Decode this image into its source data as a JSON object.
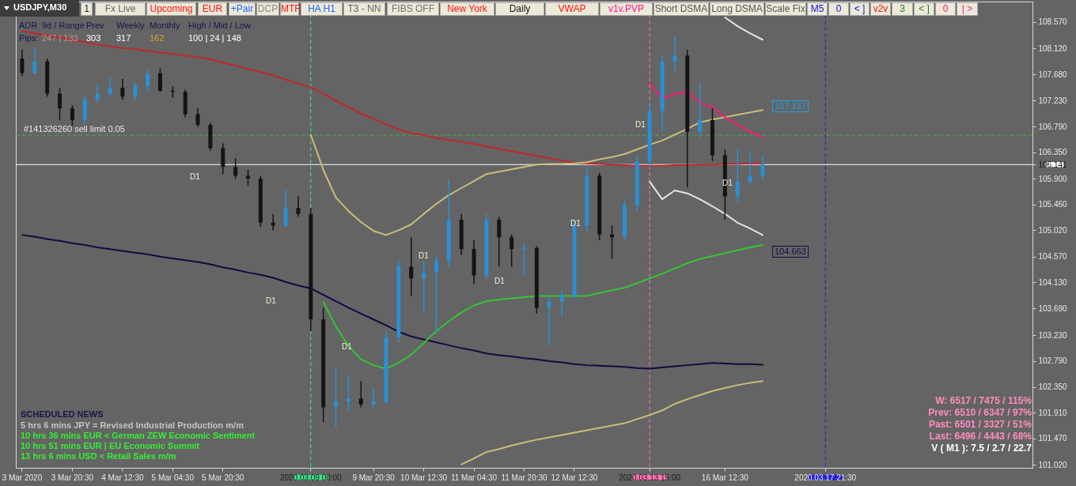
{
  "chart_data": {
    "type": "candlestick",
    "title": "USDJPY,M30",
    "categories": [
      "3 Mar 2020",
      null,
      null,
      null,
      "3 Mar 20:30",
      null,
      null,
      null,
      "4 Mar 12:30",
      null,
      null,
      null,
      "5 Mar 04:30",
      null,
      null,
      null,
      "5 Mar 20:30",
      null,
      null,
      null,
      null,
      null,
      null,
      "2020.03.09 00:00",
      null,
      null,
      null,
      null,
      "9 Mar 20:30",
      null,
      null,
      null,
      "10 Mar 12:30",
      null,
      null,
      null,
      "11 Mar 04:30",
      null,
      null,
      null,
      "11 Mar 20:30",
      null,
      null,
      null,
      "12 Mar 12:30",
      null,
      null,
      null,
      null,
      null,
      "2020.03.13 15:00",
      null,
      null,
      null,
      null,
      null,
      "16 Mar 12:30",
      null,
      null,
      null,
      null,
      null,
      null,
      null,
      "2020.03.17 21:30",
      null,
      null,
      null,
      null,
      null,
      null,
      null,
      null,
      null,
      null,
      null,
      null,
      null,
      null,
      null,
      null
    ],
    "ohlc": [
      [
        107.95,
        108.1,
        107.65,
        107.7
      ],
      [
        107.7,
        108.14,
        107.68,
        107.9
      ],
      [
        107.9,
        107.95,
        107.3,
        107.35
      ],
      [
        107.35,
        107.45,
        106.9,
        107.1
      ],
      [
        107.1,
        107.15,
        106.8,
        106.9
      ],
      [
        106.9,
        107.3,
        106.83,
        107.25
      ],
      [
        107.25,
        107.5,
        107.2,
        107.35
      ],
      [
        107.35,
        107.62,
        107.3,
        107.45
      ],
      [
        107.45,
        107.6,
        107.25,
        107.3
      ],
      [
        107.3,
        107.55,
        107.22,
        107.48
      ],
      [
        107.48,
        107.75,
        107.4,
        107.7
      ],
      [
        107.7,
        107.78,
        107.38,
        107.4
      ],
      [
        107.4,
        107.48,
        107.28,
        107.38
      ],
      [
        107.38,
        107.42,
        106.95,
        107.0
      ],
      [
        107.0,
        107.1,
        106.78,
        106.82
      ],
      [
        106.82,
        106.85,
        106.38,
        106.42
      ],
      [
        106.42,
        106.5,
        105.98,
        106.1
      ],
      [
        106.1,
        106.25,
        105.9,
        105.95
      ],
      [
        105.95,
        106.05,
        105.78,
        105.9
      ],
      [
        105.9,
        105.95,
        105.08,
        105.15
      ],
      [
        105.15,
        105.3,
        105.02,
        105.1
      ],
      [
        105.1,
        105.71,
        105.08,
        105.4
      ],
      [
        105.4,
        105.6,
        105.25,
        105.3
      ],
      [
        105.3,
        105.4,
        103.3,
        103.5
      ],
      [
        103.5,
        103.7,
        101.75,
        102.0
      ],
      [
        102.0,
        102.7,
        101.65,
        102.1
      ],
      [
        102.1,
        102.55,
        101.95,
        102.15
      ],
      [
        102.15,
        102.45,
        102.0,
        102.05
      ],
      [
        102.05,
        102.35,
        101.98,
        102.1
      ],
      [
        102.1,
        103.3,
        102.05,
        103.2
      ],
      [
        103.2,
        104.5,
        103.1,
        104.4
      ],
      [
        104.4,
        104.9,
        103.9,
        104.2
      ],
      [
        104.2,
        104.5,
        103.6,
        104.3
      ],
      [
        104.3,
        104.6,
        103.25,
        104.5
      ],
      [
        104.5,
        105.9,
        104.4,
        105.2
      ],
      [
        105.2,
        105.3,
        104.6,
        104.7
      ],
      [
        104.7,
        104.85,
        104.1,
        104.25
      ],
      [
        104.25,
        105.3,
        104.2,
        105.2
      ],
      [
        105.2,
        105.25,
        104.4,
        104.9
      ],
      [
        104.9,
        104.95,
        104.4,
        104.7
      ],
      [
        104.7,
        104.8,
        104.25,
        104.72
      ],
      [
        104.72,
        104.75,
        103.6,
        103.7
      ],
      [
        103.7,
        103.9,
        103.05,
        103.8
      ],
      [
        103.8,
        104.0,
        103.55,
        103.9
      ],
      [
        103.9,
        105.2,
        103.85,
        105.1
      ],
      [
        105.1,
        106.1,
        105.0,
        105.95
      ],
      [
        105.95,
        106.0,
        104.85,
        104.95
      ],
      [
        104.95,
        105.1,
        104.53,
        104.9
      ],
      [
        104.9,
        105.55,
        104.85,
        105.45
      ],
      [
        105.45,
        106.3,
        105.35,
        106.2
      ],
      [
        106.2,
        107.2,
        106.1,
        107.05
      ],
      [
        107.05,
        108.0,
        106.7,
        107.9
      ],
      [
        107.9,
        108.35,
        107.7,
        108.0
      ],
      [
        108.0,
        108.1,
        105.75,
        106.7
      ],
      [
        106.7,
        107.55,
        106.6,
        106.9
      ],
      [
        106.9,
        107.1,
        106.2,
        106.3
      ],
      [
        106.3,
        106.4,
        105.2,
        105.6
      ],
      [
        105.6,
        106.4,
        105.5,
        105.85
      ],
      [
        105.85,
        106.35,
        105.8,
        105.95
      ],
      [
        105.95,
        106.3,
        105.9,
        106.14
      ],
      null,
      null,
      null,
      null,
      null,
      null,
      null,
      null,
      null,
      null,
      null,
      null,
      null,
      null,
      null,
      null,
      null,
      null,
      null,
      null,
      null
    ],
    "colors": [
      "#141414",
      "#2b8fd6",
      "#141414",
      "#141414",
      "#141414",
      "#2b8fd6",
      "#2b8fd6",
      "#2b8fd6",
      "#141414",
      "#2b8fd6",
      "#2b8fd6",
      "#141414",
      "#141414",
      "#141414",
      "#141414",
      "#141414",
      "#141414",
      "#141414",
      "#141414",
      "#141414",
      "#141414",
      "#2b8fd6",
      "#141414",
      "#141414",
      "#141414",
      "#2b8fd6",
      "#2b8fd6",
      "#141414",
      "#2b8fd6",
      "#2b8fd6",
      "#2b8fd6",
      "#141414",
      "#2b8fd6",
      "#2b8fd6",
      "#2b8fd6",
      "#141414",
      "#141414",
      "#2b8fd6",
      "#141414",
      "#141414",
      "#2b8fd6",
      "#141414",
      "#2b8fd6",
      "#2b8fd6",
      "#2b8fd6",
      "#2b8fd6",
      "#141414",
      "#141414",
      "#2b8fd6",
      "#2b8fd6",
      "#2b8fd6",
      "#2b8fd6",
      "#2b8fd6",
      "#141414",
      "#2b8fd6",
      "#141414",
      "#141414",
      "#2b8fd6",
      "#2b8fd6",
      "#2b8fd6",
      null,
      null,
      null,
      null,
      null,
      null,
      null,
      null,
      null,
      null,
      null,
      null,
      null,
      null,
      null,
      null,
      null,
      null,
      null,
      null,
      null
    ],
    "series": [
      {
        "type": "line",
        "color": "#c0282d",
        "values": [
          108.42,
          108.38,
          108.34,
          108.31,
          108.27,
          108.23,
          108.19,
          108.16,
          108.13,
          108.11,
          108.08,
          108.05,
          108.03,
          108.0,
          107.97,
          107.94,
          107.88,
          107.83,
          107.77,
          107.72,
          107.66,
          107.59,
          107.52,
          107.46,
          107.35,
          107.23,
          107.12,
          107.01,
          106.92,
          106.83,
          106.74,
          106.68,
          106.64,
          106.6,
          106.56,
          106.53,
          106.49,
          106.45,
          106.41,
          106.37,
          106.33,
          106.29,
          106.25,
          106.21,
          106.17,
          106.16,
          106.15,
          106.14,
          106.13,
          106.12,
          106.12,
          106.12,
          106.13,
          106.13,
          106.14,
          106.14,
          106.15,
          106.15,
          106.16,
          106.16,
          null,
          null,
          null,
          null,
          null,
          null,
          null,
          null,
          null,
          null,
          null,
          null,
          null,
          null,
          null,
          null,
          null,
          null,
          null,
          null,
          null
        ]
      },
      {
        "type": "line",
        "color": "#0c0c40",
        "values": [
          104.94,
          104.91,
          104.87,
          104.84,
          104.8,
          104.77,
          104.73,
          104.7,
          104.67,
          104.64,
          104.61,
          104.57,
          104.54,
          104.51,
          104.48,
          104.44,
          104.39,
          104.35,
          104.3,
          104.26,
          104.21,
          104.14,
          104.08,
          104.03,
          103.92,
          103.81,
          103.7,
          103.6,
          103.5,
          103.4,
          103.29,
          103.21,
          103.16,
          103.11,
          103.06,
          103.01,
          102.97,
          102.92,
          102.89,
          102.87,
          102.84,
          102.82,
          102.79,
          102.77,
          102.74,
          102.72,
          102.71,
          102.7,
          102.69,
          102.67,
          102.66,
          102.68,
          102.7,
          102.72,
          102.74,
          102.76,
          102.75,
          102.74,
          102.74,
          102.73,
          null,
          null,
          null,
          null,
          null,
          null,
          null,
          null,
          null,
          null,
          null,
          null,
          null,
          null,
          null,
          null,
          null,
          null,
          null,
          null,
          null
        ]
      },
      {
        "type": "line",
        "color": "#cbbd7b",
        "values": [
          null,
          null,
          null,
          null,
          null,
          null,
          null,
          null,
          null,
          null,
          null,
          null,
          null,
          null,
          null,
          null,
          null,
          null,
          null,
          null,
          null,
          null,
          null,
          106.65,
          106.05,
          105.58,
          105.35,
          105.16,
          105.01,
          104.94,
          105.02,
          105.12,
          105.3,
          105.47,
          105.62,
          105.74,
          105.86,
          105.98,
          106.02,
          106.06,
          106.1,
          106.14,
          106.15,
          106.15,
          106.16,
          106.18,
          106.23,
          106.27,
          106.32,
          106.4,
          106.48,
          106.55,
          106.65,
          106.75,
          106.86,
          106.91,
          106.95,
          106.99,
          107.03,
          107.07,
          null,
          null,
          null,
          null,
          null,
          null,
          null,
          null,
          null,
          null,
          null,
          null,
          null,
          null,
          null,
          null,
          null,
          null,
          null,
          null,
          null
        ]
      },
      {
        "type": "line",
        "color": "#cbbd7b",
        "values": [
          null,
          null,
          null,
          null,
          null,
          null,
          null,
          null,
          null,
          null,
          null,
          null,
          null,
          null,
          null,
          null,
          null,
          null,
          null,
          null,
          null,
          null,
          null,
          null,
          null,
          null,
          null,
          null,
          null,
          null,
          null,
          null,
          null,
          null,
          null,
          101.03,
          101.13,
          101.24,
          101.29,
          101.35,
          101.4,
          101.45,
          101.49,
          101.53,
          101.57,
          101.61,
          101.65,
          101.69,
          101.73,
          101.8,
          101.87,
          101.95,
          102.06,
          102.14,
          102.21,
          102.28,
          102.33,
          102.38,
          102.42,
          102.45,
          null,
          null,
          null,
          null,
          null,
          null,
          null,
          null,
          null,
          null,
          null,
          null,
          null,
          null,
          null,
          null,
          null,
          null,
          null,
          null,
          null
        ]
      },
      {
        "type": "line",
        "color": "#35c435",
        "values": [
          null,
          null,
          null,
          null,
          null,
          null,
          null,
          null,
          null,
          null,
          null,
          null,
          null,
          null,
          null,
          null,
          null,
          null,
          null,
          null,
          null,
          null,
          null,
          null,
          103.8,
          103.38,
          103.05,
          102.82,
          102.72,
          102.66,
          102.76,
          102.9,
          103.1,
          103.3,
          103.47,
          103.62,
          103.74,
          103.81,
          103.84,
          103.86,
          103.88,
          103.9,
          103.9,
          103.9,
          103.9,
          103.9,
          103.95,
          104.0,
          104.04,
          104.12,
          104.2,
          104.28,
          104.37,
          104.46,
          104.53,
          104.58,
          104.63,
          104.68,
          104.73,
          104.77,
          null,
          null,
          null,
          null,
          null,
          null,
          null,
          null,
          null,
          null,
          null,
          null,
          null,
          null,
          null,
          null,
          null,
          null,
          null,
          null,
          null
        ]
      },
      {
        "type": "line",
        "color": "#ff1a75",
        "values": [
          null,
          null,
          null,
          null,
          null,
          null,
          null,
          null,
          null,
          null,
          null,
          null,
          null,
          null,
          null,
          null,
          null,
          null,
          null,
          null,
          null,
          null,
          null,
          null,
          null,
          null,
          null,
          null,
          null,
          null,
          null,
          null,
          null,
          null,
          null,
          null,
          null,
          null,
          null,
          null,
          null,
          null,
          null,
          null,
          null,
          null,
          null,
          null,
          null,
          null,
          107.53,
          107.25,
          107.35,
          107.38,
          107.2,
          107.12,
          106.95,
          106.82,
          106.7,
          106.61,
          null,
          null,
          null,
          null,
          null,
          null,
          null,
          null,
          null,
          null,
          null,
          null,
          null,
          null,
          null,
          null,
          null,
          null,
          null,
          null,
          null
        ]
      },
      {
        "type": "line",
        "color": "#e4e4e4",
        "values": [
          null,
          null,
          null,
          null,
          null,
          null,
          null,
          null,
          null,
          null,
          null,
          null,
          null,
          null,
          null,
          null,
          null,
          null,
          null,
          null,
          null,
          null,
          null,
          null,
          null,
          null,
          null,
          null,
          null,
          null,
          null,
          null,
          null,
          null,
          null,
          null,
          null,
          null,
          null,
          null,
          null,
          null,
          null,
          null,
          null,
          null,
          null,
          null,
          null,
          null,
          null,
          null,
          null,
          null,
          null,
          null,
          108.65,
          108.5,
          108.38,
          108.27,
          null,
          null,
          null,
          null,
          null,
          null,
          null,
          null,
          null,
          null,
          null,
          null,
          null,
          null,
          null,
          null,
          null,
          null,
          null,
          null,
          null
        ]
      },
      {
        "type": "line",
        "color": "#e4e4e4",
        "values": [
          null,
          null,
          null,
          null,
          null,
          null,
          null,
          null,
          null,
          null,
          null,
          null,
          null,
          null,
          null,
          null,
          null,
          null,
          null,
          null,
          null,
          null,
          null,
          null,
          null,
          null,
          null,
          null,
          null,
          null,
          null,
          null,
          null,
          null,
          null,
          null,
          null,
          null,
          null,
          null,
          null,
          null,
          null,
          null,
          null,
          null,
          null,
          null,
          null,
          null,
          105.85,
          105.55,
          105.7,
          105.65,
          105.55,
          105.43,
          105.3,
          105.15,
          105.05,
          104.94,
          null,
          null,
          null,
          null,
          null,
          null,
          null,
          null,
          null,
          null,
          null,
          null,
          null,
          null,
          null,
          null,
          null,
          null,
          null,
          null,
          null
        ]
      }
    ],
    "ylim": [
      100.97,
      108.92
    ],
    "yticks": [
      {
        "value": 101.02,
        "label": "101.020"
      },
      {
        "value": 101.47,
        "label": "101.470"
      },
      {
        "value": 101.91,
        "label": "101.910"
      },
      {
        "value": 102.35,
        "label": "102.350"
      },
      {
        "value": 102.79,
        "label": "102.790"
      },
      {
        "value": 103.23,
        "label": "103.230"
      },
      {
        "value": 103.69,
        "label": "103.690"
      },
      {
        "value": 104.13,
        "label": "104.130"
      },
      {
        "value": 104.57,
        "label": "104.570"
      },
      {
        "value": 105.02,
        "label": "105.020"
      },
      {
        "value": 105.46,
        "label": "105.460"
      },
      {
        "value": 105.9,
        "label": "105.900"
      },
      {
        "value": 106.141,
        "label": "106.141"
      },
      {
        "value": 106.35,
        "label": "106.350"
      },
      {
        "value": 106.79,
        "label": "106.790"
      },
      {
        "value": 107.23,
        "label": "107.230"
      },
      {
        "value": 107.68,
        "label": "107.680"
      },
      {
        "value": 108.12,
        "label": "108.120"
      },
      {
        "value": 108.57,
        "label": "108.570"
      }
    ],
    "ref_lines": [
      {
        "axis": "x",
        "value": "2020.03.09 00:00",
        "color": "#3fe08a",
        "line_style": "dashed"
      },
      {
        "axis": "x",
        "value": "2020.03.13 15:00",
        "color": "#ff70b0",
        "line_style": "dashed"
      },
      {
        "axis": "x",
        "value": "2020.03.17 21:30",
        "color": "#2424d8",
        "line_style": "dashed"
      },
      {
        "axis": "y",
        "value": 106.64,
        "color": "#3cb043",
        "line_style": "dashed",
        "label": "#141326260 sell limit 0.05"
      },
      {
        "axis": "y",
        "value": 106.141,
        "color": "#ffffff",
        "line_style": "solid"
      }
    ],
    "annotations": [
      "1",
      "Fx Live",
      "Upcoming",
      "EUR",
      "+Pair",
      "DCP",
      "MTF",
      "HA H1",
      "T3 - NN",
      "FIBS OFF",
      "New York",
      "Daily",
      "VWAP",
      "v1v.PVP",
      "Short DSMA",
      "Long DSMA",
      "Scale Fix",
      "M5",
      "0",
      "< ]",
      "v2v",
      "3",
      "< ]",
      "0",
      "| >",
      "ADR",
      "9d / Range",
      "Prev",
      "Weekly",
      "Monthly",
      "High / Mid / Low",
      "Pips:",
      "247 | 133",
      "303",
      "317",
      "162",
      "100 | 24 | 148",
      "SCHEDULED NEWS",
      "5 hrs 6 mins  JPY  =  Revised Industrial Production m/m",
      "10 hrs 36 mins  EUR  <  German ZEW Economic Sentiment",
      "10 hrs 51 mins  EUR  |  EU Economic Summit",
      "13 hrs 6 mins  USD  <  Retail Sales m/m",
      "W: 6517 / 7475 / 115%",
      "Prev: 6510 / 6347 / 97%",
      "Past: 6501 / 3327 / 51%",
      "Last: 6496 / 4443 / 68%",
      "V ( M1 ): 7.5 / 2.7 / 22.7",
      "D1",
      "D1",
      "D1",
      "D1",
      "D1",
      "D1",
      "D1",
      "D1",
      "107.137",
      "104.663"
    ]
  }
}
